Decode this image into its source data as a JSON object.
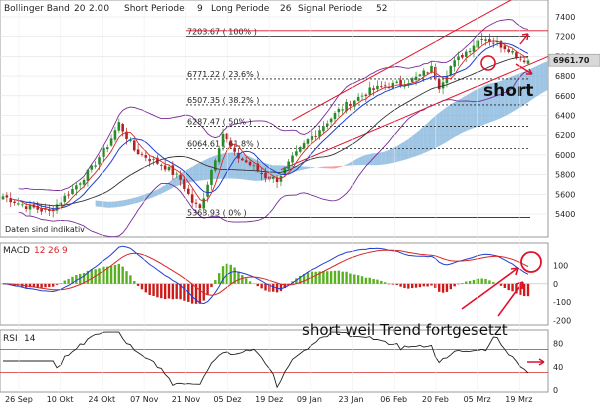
{
  "header": {
    "main_title": "Bollinger Band",
    "main_params": [
      "20",
      "2.00"
    ],
    "short_label": "Short Periode",
    "short_value": "9",
    "long_label": "Long Periode",
    "long_value": "26",
    "signal_label": "Signal Periode",
    "signal_value": "52"
  },
  "colors": {
    "up_candle": "#2a8a2a",
    "down_candle": "#b22222",
    "bollinger": "#7a2a9a",
    "sma": "#333333",
    "ema": "#1f3fcf",
    "channel": "#e0112b",
    "cloud_red": "#f08080",
    "cloud_blue": "#7fb2dc",
    "macd_line": "#1f3fcf",
    "signal_line": "#d62828",
    "histogram_pos": "#58b020",
    "histogram_neg": "#cc1a1a",
    "rsi_line": "#222222",
    "rsi_band": "#d62828",
    "annotation": "#e0112b"
  },
  "chart_data": [
    {
      "type": "candlestick",
      "panel": "price",
      "title": "Bollinger Band 20 2.00",
      "x_dates": [
        "26 Sep",
        "10 Okt",
        "24 Okt",
        "07 Nov",
        "21 Nov",
        "05 Dez",
        "19 Dez",
        "09 Jan",
        "23 Jan",
        "06 Feb",
        "20 Feb",
        "05 Mrz",
        "19 Mrz"
      ],
      "y_ticks": [
        5400,
        5600,
        5800,
        6000,
        6200,
        6400,
        6600,
        6800,
        7000,
        7200,
        7400
      ],
      "ylim": [
        5250,
        7500
      ],
      "last_price": "6961.70",
      "close_path": [
        [
          0,
          5580
        ],
        [
          6,
          5480
        ],
        [
          12,
          5420
        ],
        [
          18,
          5650
        ],
        [
          23,
          5860
        ],
        [
          27,
          6100
        ],
        [
          30,
          6320
        ],
        [
          34,
          6050
        ],
        [
          38,
          5960
        ],
        [
          42,
          5880
        ],
        [
          46,
          5750
        ],
        [
          49,
          5520
        ],
        [
          51,
          5450
        ],
        [
          54,
          5850
        ],
        [
          57,
          6220
        ],
        [
          60,
          6000
        ],
        [
          64,
          5900
        ],
        [
          68,
          5780
        ],
        [
          71,
          5750
        ],
        [
          75,
          5960
        ],
        [
          79,
          6150
        ],
        [
          83,
          6300
        ],
        [
          87,
          6450
        ],
        [
          91,
          6560
        ],
        [
          95,
          6650
        ],
        [
          99,
          6700
        ],
        [
          103,
          6720
        ],
        [
          107,
          6780
        ],
        [
          111,
          6880
        ],
        [
          113,
          6700
        ],
        [
          116,
          6900
        ],
        [
          120,
          7050
        ],
        [
          124,
          7200
        ],
        [
          127,
          7150
        ],
        [
          131,
          7080
        ],
        [
          134,
          6980
        ],
        [
          136,
          6960
        ]
      ],
      "fibonacci_levels": [
        {
          "label": "7203.67 ( 100% )",
          "value": 7203.67
        },
        {
          "label": "6771.22 ( 23.6% )",
          "value": 6771.22
        },
        {
          "label": "6507.35 ( 38.2% )",
          "value": 6507.35
        },
        {
          "label": "6287.47 ( 50% )",
          "value": 6287.47
        },
        {
          "label": "6064.61 ( 61.8% )",
          "value": 6064.61
        },
        {
          "label": "5363.93 ( 0% )",
          "value": 5363.93
        }
      ],
      "annotations": [
        {
          "text": "short"
        },
        {
          "text": "Daten sind indikativ"
        }
      ]
    },
    {
      "type": "line",
      "panel": "macd",
      "title": "MACD 12 26 9",
      "label": "MACD",
      "params": [
        "12",
        "26",
        "9"
      ],
      "y_ticks": [
        100,
        0,
        -100,
        -200
      ],
      "ylim": [
        -240,
        140
      ],
      "annotations": [
        {
          "text": "short weil Trend fortgesetzt"
        }
      ]
    },
    {
      "type": "line",
      "panel": "rsi",
      "title": "RSI 14",
      "label": "RSI",
      "params": [
        "14"
      ],
      "y_ticks": [
        80,
        40,
        0
      ],
      "ylim": [
        0,
        100
      ],
      "bands": [
        30,
        70
      ]
    }
  ]
}
